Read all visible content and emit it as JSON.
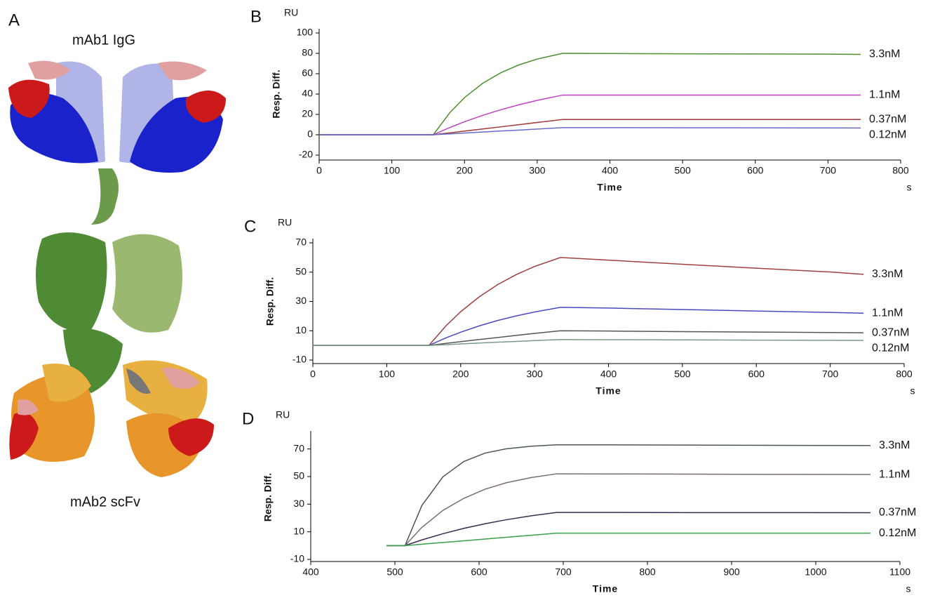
{
  "panel_a": {
    "label": "A",
    "title": "mAb1 IgG",
    "caption": "mAb2 scFv"
  },
  "chart_data": [
    {
      "type": "line",
      "panel": "B",
      "y_unit": "RU",
      "y_label": "Resp. Diff.",
      "x_label": "Time",
      "x_unit": "s",
      "x": [
        0,
        157,
        180,
        200,
        225,
        250,
        275,
        300,
        335,
        400,
        500,
        600,
        700,
        745
      ],
      "series": [
        {
          "name": "3.3nM",
          "color": "#4f8f2f",
          "values": [
            0,
            0,
            21.9,
            36.5,
            50.6,
            61,
            68.7,
            74.4,
            80,
            79.8,
            79.6,
            79.4,
            79.2,
            79
          ]
        },
        {
          "name": "1.1nM",
          "color": "#c040c0",
          "values": [
            0,
            0,
            7.2,
            12.8,
            19.1,
            24.6,
            29.5,
            33.8,
            39,
            39,
            39,
            39,
            39,
            39
          ]
        },
        {
          "name": "0.37nM",
          "color": "#a03a3a",
          "values": [
            0,
            0,
            1.9,
            3.6,
            5.7,
            7.8,
            9.9,
            12.1,
            15,
            15,
            15,
            15,
            15,
            15
          ]
        },
        {
          "name": "0.12nM",
          "color": "#6a6ac8",
          "values": [
            0,
            0,
            0.9,
            1.7,
            2.7,
            3.7,
            4.6,
            5.6,
            7,
            7,
            6.9,
            6.8,
            6.7,
            6.6
          ]
        }
      ],
      "xlim": [
        0,
        800
      ],
      "ylim": [
        -20,
        100
      ],
      "xticks": [
        0,
        100,
        200,
        300,
        400,
        500,
        600,
        700,
        800
      ],
      "yticks": [
        -20,
        0,
        20,
        40,
        60,
        80,
        100
      ]
    },
    {
      "type": "line",
      "panel": "C",
      "y_unit": "RU",
      "y_label": "Resp. Diff.",
      "x_label": "Time",
      "x_unit": "s",
      "x": [
        0,
        157,
        180,
        200,
        225,
        250,
        275,
        300,
        335,
        400,
        500,
        600,
        700,
        745
      ],
      "series": [
        {
          "name": "3.3nM",
          "color": "#a04040",
          "values": [
            0,
            0,
            13.3,
            23,
            33.1,
            41.5,
            48.3,
            53.9,
            60,
            58.2,
            55.4,
            52.7,
            50.1,
            48.5
          ]
        },
        {
          "name": "1.1nM",
          "color": "#4a4ac0",
          "values": [
            0,
            0,
            5.1,
            9,
            13.3,
            17,
            20.1,
            22.8,
            26,
            25.5,
            24.5,
            23.5,
            22.5,
            22
          ]
        },
        {
          "name": "0.37nM",
          "color": "#555555",
          "values": [
            0,
            0,
            1.4,
            2.6,
            4,
            5.4,
            6.8,
            8.2,
            10,
            9.8,
            9.4,
            9.1,
            8.8,
            8.6
          ]
        },
        {
          "name": "0.12nM",
          "color": "#7a9a8a",
          "values": [
            0,
            0,
            0.5,
            1,
            1.6,
            2.2,
            2.7,
            3.3,
            4,
            3.9,
            3.8,
            3.6,
            3.5,
            3.4
          ]
        }
      ],
      "xlim": [
        0,
        800
      ],
      "ylim": [
        -10,
        70
      ],
      "xticks": [
        0,
        100,
        200,
        300,
        400,
        500,
        600,
        700,
        800
      ],
      "yticks": [
        -10,
        10,
        30,
        50,
        70
      ]
    },
    {
      "type": "line",
      "panel": "D",
      "y_unit": "RU",
      "y_label": "Resp. Diff.",
      "x_label": "Time",
      "x_unit": "s",
      "x": [
        490,
        512,
        532,
        557,
        582,
        607,
        632,
        662,
        692,
        750,
        850,
        950,
        1065
      ],
      "series": [
        {
          "name": "3.3nM",
          "color": "#4a5a4a",
          "values": [
            0,
            0,
            29,
            49.8,
            61,
            67,
            70.1,
            72,
            73,
            73,
            72.8,
            72.6,
            72.5
          ]
        },
        {
          "name": "1.1nM",
          "color": "#7a6a7a",
          "values": [
            0,
            0,
            13.2,
            25.5,
            34.3,
            40.8,
            45.5,
            49.3,
            52,
            51.9,
            51.8,
            51.6,
            51.5
          ]
        },
        {
          "name": "0.37nM",
          "color": "#3a2a50",
          "values": [
            0,
            0,
            4.1,
            8.6,
            12.5,
            15.8,
            18.7,
            21.6,
            24,
            24,
            23.9,
            23.9,
            23.8
          ]
        },
        {
          "name": "0.12nM",
          "color": "#3aa04a",
          "values": [
            0,
            0,
            1,
            2.25,
            3.5,
            4.75,
            6,
            7.5,
            9,
            9,
            9,
            9,
            9
          ]
        }
      ],
      "xlim": [
        400,
        1100
      ],
      "ylim": [
        -10,
        80
      ],
      "xticks": [
        400,
        500,
        600,
        700,
        800,
        900,
        1000,
        1100
      ],
      "yticks": [
        -10,
        10,
        30,
        50,
        70
      ]
    }
  ]
}
